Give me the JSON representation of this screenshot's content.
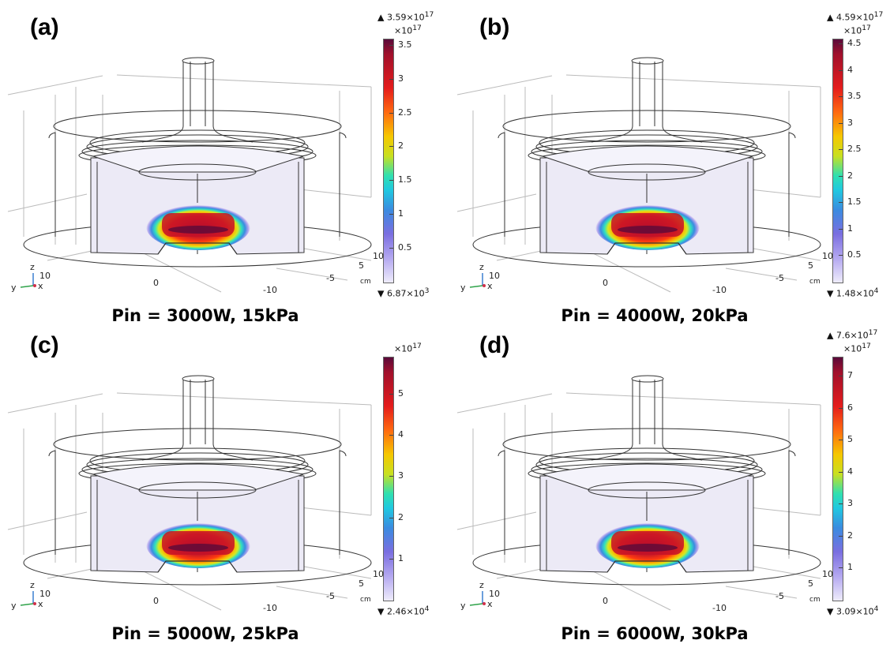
{
  "panels": [
    {
      "label": "(a)",
      "caption": "Pin = 3000W, 15kPa",
      "colorbar": {
        "max": "▲ 3.59×10",
        "max_exp": "17",
        "multiplier": "×10",
        "multiplier_exp": "17",
        "min": "▼ 6.87×10",
        "min_exp": "3",
        "ticks": [
          "3.5",
          "3",
          "2.5",
          "2",
          "1.5",
          "1",
          "0.5"
        ],
        "tick_values": [
          3.5,
          3.0,
          2.5,
          2.0,
          1.5,
          1.0,
          0.5
        ],
        "vmax": 3.59,
        "vmin": 0.0
      },
      "axis_ticks": {
        "z": "10",
        "x0": "0",
        "xneg": "-10",
        "y5": "5",
        "y10": "10",
        "yneg5": "-5",
        "unit": "cm"
      }
    },
    {
      "label": "(b)",
      "caption": "Pin = 4000W, 20kPa",
      "colorbar": {
        "max": "▲ 4.59×10",
        "max_exp": "17",
        "multiplier": "×10",
        "multiplier_exp": "17",
        "min": "▼ 1.48×10",
        "min_exp": "4",
        "ticks": [
          "4.5",
          "4",
          "3.5",
          "3",
          "2.5",
          "2",
          "1.5",
          "1",
          "0.5"
        ],
        "tick_values": [
          4.5,
          4.0,
          3.5,
          3.0,
          2.5,
          2.0,
          1.5,
          1.0,
          0.5
        ],
        "vmax": 4.59,
        "vmin": 0.0
      },
      "axis_ticks": {
        "z": "10",
        "x0": "0",
        "xneg": "-10",
        "y5": "5",
        "y10": "10",
        "yneg5": "-5",
        "unit": "cm"
      }
    },
    {
      "label": "(c)",
      "caption": "Pin = 5000W, 25kPa",
      "colorbar": {
        "max": "",
        "max_exp": "",
        "multiplier": "×10",
        "multiplier_exp": "17",
        "min": "▼ 2.46×10",
        "min_exp": "4",
        "ticks": [
          "5",
          "4",
          "3",
          "2",
          "1"
        ],
        "tick_values": [
          5,
          4,
          3,
          2,
          1
        ],
        "vmax": 5.9,
        "vmin": 0.0
      },
      "axis_ticks": {
        "z": "10",
        "x0": "0",
        "xneg": "-10",
        "y5": "5",
        "y10": "10",
        "yneg5": "-5",
        "unit": "cm"
      }
    },
    {
      "label": "(d)",
      "caption": "Pin = 6000W, 30kPa",
      "colorbar": {
        "max": "▲ 7.6×10",
        "max_exp": "17",
        "multiplier": "×10",
        "multiplier_exp": "17",
        "min": "▼ 3.09×10",
        "min_exp": "4",
        "ticks": [
          "7",
          "6",
          "5",
          "4",
          "3",
          "2",
          "1"
        ],
        "tick_values": [
          7,
          6,
          5,
          4,
          3,
          2,
          1
        ],
        "vmax": 7.6,
        "vmin": 0.0
      },
      "axis_ticks": {
        "z": "10",
        "x0": "0",
        "xneg": "-10",
        "y5": "5",
        "y10": "10",
        "yneg5": "-5",
        "unit": "cm"
      }
    }
  ],
  "axis_indicator": {
    "z": "z",
    "y": "y",
    "x": "x"
  },
  "colors": {
    "line": "#333333",
    "wall": "#eceaf6",
    "grid": "#bbbbbb"
  }
}
